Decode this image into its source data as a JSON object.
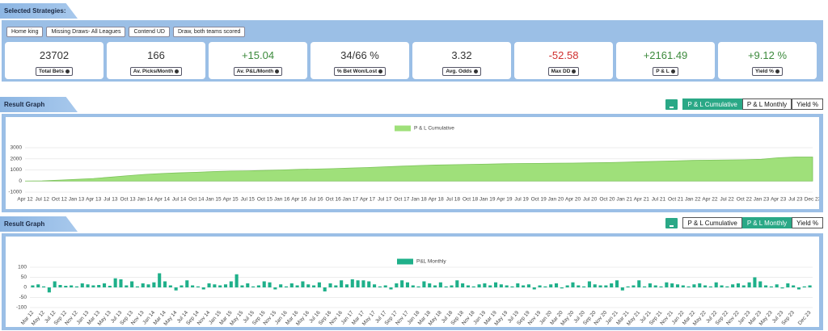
{
  "header": {
    "title": "Selected Strategies:"
  },
  "strategies": [
    "Home king",
    "Missing Draws- All Leagues",
    "Contend UD",
    "Draw, both teams scored"
  ],
  "stats": [
    {
      "value": "23702",
      "label": "Total Bets",
      "color": "#333333"
    },
    {
      "value": "166",
      "label": "Av. Picks/Month",
      "color": "#333333"
    },
    {
      "value": "+15.04",
      "label": "Av. P&L/Month",
      "color": "#3c8a3c"
    },
    {
      "value": "34/66 %",
      "label": "% Bet Won/Lost",
      "color": "#333333"
    },
    {
      "value": "3.32",
      "label": "Avg. Odds",
      "color": "#333333"
    },
    {
      "value": "-52.58",
      "label": "Max DD",
      "color": "#d0302f"
    },
    {
      "value": "+2161.49",
      "label": "P & L",
      "color": "#3c8a3c"
    },
    {
      "value": "+9.12 %",
      "label": "Yield %",
      "color": "#3c8a3c"
    }
  ],
  "sections": [
    {
      "title": "Result Graph",
      "buttons": [
        {
          "label": "P & L Cumulative",
          "active": true
        },
        {
          "label": "P & L Monthly",
          "active": false
        },
        {
          "label": "Yield %",
          "active": false
        }
      ]
    },
    {
      "title": "Result Graph",
      "buttons": [
        {
          "label": "P & L Cumulative",
          "active": false
        },
        {
          "label": "P & L Monthly",
          "active": true
        },
        {
          "label": "Yield %",
          "active": false
        }
      ]
    }
  ],
  "chart_data": [
    {
      "type": "area",
      "categories": [
        "Apr 12",
        "Jul 12",
        "Oct 12",
        "Jan 13",
        "Apr 13",
        "Jul 13",
        "Oct 13",
        "Jan 14",
        "Apr 14",
        "Jul 14",
        "Oct 14",
        "Jan 15",
        "Apr 15",
        "Jul 15",
        "Oct 15",
        "Jan 16",
        "Apr 16",
        "Jul 16",
        "Oct 16",
        "Jan 17",
        "Apr 17",
        "Jul 17",
        "Oct 17",
        "Jan 18",
        "Apr 18",
        "Jul 18",
        "Oct 18",
        "Jan 19",
        "Apr 19",
        "Jul 19",
        "Oct 19",
        "Jan 20",
        "Apr 20",
        "Jul 20",
        "Oct 20",
        "Jan 21",
        "Apr 21",
        "Jul 21",
        "Oct 21",
        "Jan 22",
        "Apr 22",
        "Jul 22",
        "Oct 22",
        "Jan 23",
        "Apr 23",
        "Jul 23",
        "Dec 23"
      ],
      "series": [
        {
          "name": "P & L Cumulative",
          "color": "#9fe07a",
          "values": [
            0,
            20,
            80,
            150,
            230,
            350,
            480,
            600,
            680,
            740,
            790,
            850,
            900,
            920,
            960,
            1000,
            1050,
            1080,
            1120,
            1170,
            1220,
            1280,
            1340,
            1400,
            1440,
            1470,
            1500,
            1530,
            1560,
            1580,
            1590,
            1610,
            1620,
            1640,
            1660,
            1700,
            1740,
            1780,
            1820,
            1860,
            1880,
            1900,
            1920,
            1960,
            2100,
            2160,
            2161.49
          ]
        }
      ],
      "ylim": [
        -1000,
        3000
      ],
      "yticks": [
        -1000,
        0,
        1000,
        2000,
        3000
      ],
      "grid": true
    },
    {
      "type": "bar",
      "categories": [
        "Mar 12",
        null,
        "May 12",
        null,
        "Jul 12",
        null,
        "Sep 12",
        null,
        "Nov 12",
        null,
        "Jan 13",
        null,
        "Mar 13",
        null,
        "May 13",
        null,
        "Jul 13",
        null,
        "Sep 13",
        null,
        "Nov 13",
        null,
        "Jan 14",
        null,
        "Mar 14",
        null,
        "May 14",
        null,
        "Jul 14",
        null,
        "Sep 14",
        null,
        "Nov 14",
        null,
        "Jan 15",
        null,
        "Mar 15",
        null,
        "May 15",
        null,
        "Jul 15",
        null,
        "Sep 15",
        null,
        "Nov 15",
        null,
        "Jan 16",
        null,
        "Mar 16",
        null,
        "May 16",
        null,
        "Jul 16",
        null,
        "Sep 16",
        null,
        "Nov 16",
        null,
        "Jan 17",
        null,
        "Mar 17",
        null,
        "May 17",
        null,
        "Jul 17",
        null,
        "Sep 17",
        null,
        "Nov 17",
        null,
        "Jan 18",
        null,
        "Mar 18",
        null,
        "May 18",
        null,
        "Jul 18",
        null,
        "Sep 18",
        null,
        "Nov 18",
        null,
        "Jan 19",
        null,
        "Mar 19",
        null,
        "May 19",
        null,
        "Jul 19",
        null,
        "Sep 19",
        null,
        "Nov 19",
        null,
        "Jan 20",
        null,
        "Mar 20",
        null,
        "May 20",
        null,
        "Jul 20",
        null,
        "Sep 20",
        null,
        "Nov 20",
        null,
        "Jan 21",
        null,
        "Mar 21",
        null,
        "May 21",
        null,
        "Jul 21",
        null,
        "Sep 21",
        null,
        "Nov 21",
        null,
        "Jan 22",
        null,
        "Mar 22",
        null,
        "May 22",
        null,
        "Jul 22",
        null,
        "Sep 22",
        null,
        "Nov 22",
        null,
        "Jan 23",
        null,
        "Mar 23",
        null,
        "May 23",
        null,
        "Jul 23",
        null,
        "Sep 23",
        null,
        null,
        "Dec 23"
      ],
      "series": [
        {
          "name": "P&L Monthly",
          "color": "#1fb08a",
          "values": [
            10,
            15,
            5,
            -25,
            30,
            12,
            8,
            10,
            5,
            20,
            15,
            10,
            12,
            20,
            8,
            45,
            40,
            10,
            30,
            5,
            20,
            15,
            25,
            70,
            30,
            10,
            -15,
            10,
            35,
            10,
            5,
            -10,
            20,
            15,
            10,
            15,
            30,
            65,
            10,
            20,
            5,
            10,
            30,
            25,
            -10,
            15,
            5,
            20,
            10,
            30,
            15,
            10,
            25,
            -20,
            20,
            10,
            35,
            15,
            40,
            35,
            35,
            30,
            15,
            5,
            10,
            -10,
            20,
            35,
            25,
            10,
            5,
            30,
            20,
            10,
            25,
            5,
            10,
            35,
            20,
            10,
            5,
            15,
            20,
            10,
            25,
            15,
            10,
            5,
            20,
            10,
            15,
            -10,
            10,
            5,
            15,
            20,
            -5,
            10,
            25,
            10,
            5,
            30,
            15,
            10,
            10,
            20,
            35,
            -15,
            5,
            10,
            35,
            5,
            20,
            10,
            5,
            25,
            20,
            15,
            10,
            5,
            15,
            20,
            10,
            5,
            25,
            10,
            5,
            15,
            20,
            10,
            25,
            50,
            30,
            10,
            5,
            15,
            -5,
            20,
            10,
            -10,
            5,
            10
          ]
        }
      ],
      "ylim": [
        -100,
        100
      ],
      "yticks": [
        -100,
        -50,
        0,
        50,
        100
      ],
      "grid": true
    }
  ]
}
